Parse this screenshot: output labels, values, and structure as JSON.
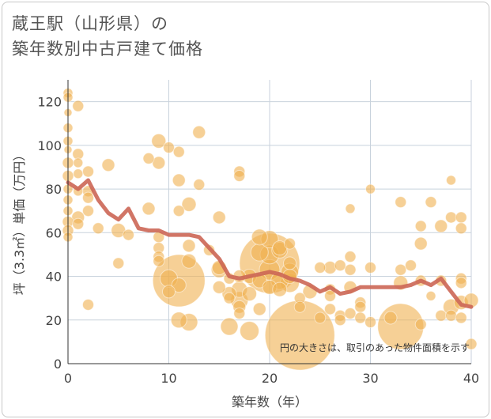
{
  "title_line1": "蔵王駅（山形県）の",
  "title_line2": "築年数別中古戸建て価格",
  "chart_data": {
    "type": "scatter",
    "title": "蔵王駅（山形県）の 築年数別中古戸建て価格",
    "xlabel": "築年数（年）",
    "ylabel": "坪（3.3㎡）単価（万円）",
    "xlim": [
      0,
      40
    ],
    "ylim": [
      0,
      130
    ],
    "xticks": [
      0,
      10,
      20,
      30,
      40
    ],
    "yticks": [
      0,
      20,
      40,
      60,
      80,
      100,
      120
    ],
    "note": "円の大きさは、取引のあった物件面積を示す",
    "colors": {
      "bubble": "#f0b050",
      "line": "#cc6655",
      "grid": "#c8d2dc"
    },
    "series": [
      {
        "name": "average",
        "type": "line",
        "x": [
          0,
          1,
          2,
          3,
          4,
          5,
          6,
          7,
          8,
          9,
          10,
          11,
          12,
          13,
          14,
          15,
          16,
          17,
          18,
          19,
          20,
          21,
          22,
          23,
          24,
          25,
          26,
          27,
          28,
          29,
          30,
          31,
          32,
          33,
          34,
          35,
          36,
          37,
          38,
          39,
          40
        ],
        "y": [
          83,
          80,
          84,
          75,
          69,
          66,
          71,
          62,
          61,
          61,
          59,
          59,
          59,
          58,
          53,
          48,
          40,
          39,
          40,
          41,
          42,
          41,
          39,
          38,
          36,
          33,
          35,
          32,
          33,
          35,
          35,
          35,
          35,
          35,
          36,
          38,
          36,
          39,
          33,
          27,
          26
        ]
      },
      {
        "name": "transactions",
        "type": "scatter",
        "points": [
          {
            "x": 0,
            "y": 124,
            "s": 6
          },
          {
            "x": 0,
            "y": 122,
            "s": 6
          },
          {
            "x": 0,
            "y": 115,
            "s": 5
          },
          {
            "x": 0,
            "y": 108,
            "s": 6
          },
          {
            "x": 0,
            "y": 102,
            "s": 6
          },
          {
            "x": 0,
            "y": 98,
            "s": 5
          },
          {
            "x": 0,
            "y": 92,
            "s": 7
          },
          {
            "x": 0,
            "y": 86,
            "s": 7
          },
          {
            "x": 0,
            "y": 80,
            "s": 6
          },
          {
            "x": 0,
            "y": 75,
            "s": 6
          },
          {
            "x": 0,
            "y": 70,
            "s": 6
          },
          {
            "x": 0,
            "y": 65,
            "s": 7
          },
          {
            "x": 0,
            "y": 61,
            "s": 7
          },
          {
            "x": 0,
            "y": 58,
            "s": 6
          },
          {
            "x": 1,
            "y": 118,
            "s": 7
          },
          {
            "x": 1,
            "y": 96,
            "s": 7
          },
          {
            "x": 1,
            "y": 92,
            "s": 6
          },
          {
            "x": 1,
            "y": 87,
            "s": 6
          },
          {
            "x": 1,
            "y": 79,
            "s": 6
          },
          {
            "x": 1,
            "y": 67,
            "s": 8
          },
          {
            "x": 1,
            "y": 64,
            "s": 7
          },
          {
            "x": 2,
            "y": 88,
            "s": 7
          },
          {
            "x": 2,
            "y": 79,
            "s": 7
          },
          {
            "x": 2,
            "y": 76,
            "s": 7
          },
          {
            "x": 2,
            "y": 70,
            "s": 7
          },
          {
            "x": 2,
            "y": 27,
            "s": 7
          },
          {
            "x": 3,
            "y": 62,
            "s": 7
          },
          {
            "x": 4,
            "y": 91,
            "s": 8
          },
          {
            "x": 5,
            "y": 61,
            "s": 9
          },
          {
            "x": 5,
            "y": 46,
            "s": 7
          },
          {
            "x": 6,
            "y": 59,
            "s": 7
          },
          {
            "x": 8,
            "y": 94,
            "s": 7
          },
          {
            "x": 8,
            "y": 71,
            "s": 8
          },
          {
            "x": 9,
            "y": 102,
            "s": 9
          },
          {
            "x": 9,
            "y": 92,
            "s": 8
          },
          {
            "x": 9,
            "y": 58,
            "s": 7
          },
          {
            "x": 9,
            "y": 53,
            "s": 7
          },
          {
            "x": 9,
            "y": 49,
            "s": 7
          },
          {
            "x": 9,
            "y": 47,
            "s": 7
          },
          {
            "x": 10,
            "y": 99,
            "s": 7
          },
          {
            "x": 10,
            "y": 39,
            "s": 11
          },
          {
            "x": 10,
            "y": 33,
            "s": 8
          },
          {
            "x": 11,
            "y": 97,
            "s": 7
          },
          {
            "x": 11,
            "y": 84,
            "s": 8
          },
          {
            "x": 11,
            "y": 70,
            "s": 7
          },
          {
            "x": 11,
            "y": 38,
            "s": 33
          },
          {
            "x": 11,
            "y": 36,
            "s": 9
          },
          {
            "x": 11,
            "y": 20,
            "s": 10
          },
          {
            "x": 12,
            "y": 73,
            "s": 9
          },
          {
            "x": 12,
            "y": 54,
            "s": 8
          },
          {
            "x": 12,
            "y": 47,
            "s": 9
          },
          {
            "x": 12,
            "y": 19,
            "s": 11
          },
          {
            "x": 13,
            "y": 106,
            "s": 8
          },
          {
            "x": 13,
            "y": 82,
            "s": 7
          },
          {
            "x": 14,
            "y": 52,
            "s": 7
          },
          {
            "x": 15,
            "y": 67,
            "s": 8
          },
          {
            "x": 15,
            "y": 44,
            "s": 9
          },
          {
            "x": 15,
            "y": 43,
            "s": 10
          },
          {
            "x": 15,
            "y": 35,
            "s": 8
          },
          {
            "x": 16,
            "y": 39,
            "s": 7
          },
          {
            "x": 16,
            "y": 32,
            "s": 9
          },
          {
            "x": 16,
            "y": 30,
            "s": 7
          },
          {
            "x": 16,
            "y": 17,
            "s": 11
          },
          {
            "x": 17,
            "y": 88,
            "s": 7
          },
          {
            "x": 17,
            "y": 86,
            "s": 7
          },
          {
            "x": 17,
            "y": 40,
            "s": 8
          },
          {
            "x": 17,
            "y": 34,
            "s": 10
          },
          {
            "x": 17,
            "y": 29,
            "s": 11
          },
          {
            "x": 17,
            "y": 26,
            "s": 8
          },
          {
            "x": 17,
            "y": 23,
            "s": 7
          },
          {
            "x": 18,
            "y": 40,
            "s": 9
          },
          {
            "x": 18,
            "y": 32,
            "s": 9
          },
          {
            "x": 18,
            "y": 15,
            "s": 12
          },
          {
            "x": 19,
            "y": 58,
            "s": 10
          },
          {
            "x": 19,
            "y": 51,
            "s": 11
          },
          {
            "x": 19,
            "y": 38,
            "s": 9
          },
          {
            "x": 19,
            "y": 25,
            "s": 8
          },
          {
            "x": 20,
            "y": 57,
            "s": 11
          },
          {
            "x": 20,
            "y": 50,
            "s": 12
          },
          {
            "x": 20,
            "y": 46,
            "s": 38
          },
          {
            "x": 20,
            "y": 43,
            "s": 13
          },
          {
            "x": 20,
            "y": 35,
            "s": 9
          },
          {
            "x": 21,
            "y": 53,
            "s": 9
          },
          {
            "x": 21,
            "y": 52,
            "s": 10
          },
          {
            "x": 21,
            "y": 38,
            "s": 11
          },
          {
            "x": 21,
            "y": 34,
            "s": 9
          },
          {
            "x": 22,
            "y": 55,
            "s": 7
          },
          {
            "x": 22,
            "y": 46,
            "s": 8
          },
          {
            "x": 22,
            "y": 42,
            "s": 11
          },
          {
            "x": 22,
            "y": 40,
            "s": 9
          },
          {
            "x": 22,
            "y": 37,
            "s": 12
          },
          {
            "x": 23,
            "y": 30,
            "s": 7
          },
          {
            "x": 23,
            "y": 26,
            "s": 7
          },
          {
            "x": 23,
            "y": 13,
            "s": 44
          },
          {
            "x": 24,
            "y": 33,
            "s": 9
          },
          {
            "x": 25,
            "y": 44,
            "s": 7
          },
          {
            "x": 25,
            "y": 21,
            "s": 7
          },
          {
            "x": 26,
            "y": 44,
            "s": 8
          },
          {
            "x": 26,
            "y": 34,
            "s": 7
          },
          {
            "x": 26,
            "y": 31,
            "s": 7
          },
          {
            "x": 26,
            "y": 25,
            "s": 7
          },
          {
            "x": 27,
            "y": 45,
            "s": 7
          },
          {
            "x": 27,
            "y": 22,
            "s": 7
          },
          {
            "x": 27,
            "y": 20,
            "s": 7
          },
          {
            "x": 28,
            "y": 71,
            "s": 6
          },
          {
            "x": 28,
            "y": 49,
            "s": 7
          },
          {
            "x": 28,
            "y": 43,
            "s": 7
          },
          {
            "x": 28,
            "y": 35,
            "s": 8
          },
          {
            "x": 28,
            "y": 23,
            "s": 7
          },
          {
            "x": 29,
            "y": 28,
            "s": 7
          },
          {
            "x": 29,
            "y": 26,
            "s": 7
          },
          {
            "x": 29,
            "y": 21,
            "s": 7
          },
          {
            "x": 30,
            "y": 80,
            "s": 6
          },
          {
            "x": 30,
            "y": 44,
            "s": 7
          },
          {
            "x": 30,
            "y": 19,
            "s": 7
          },
          {
            "x": 33,
            "y": 74,
            "s": 7
          },
          {
            "x": 33,
            "y": 43,
            "s": 7
          },
          {
            "x": 33,
            "y": 37,
            "s": 9
          },
          {
            "x": 33,
            "y": 17,
            "s": 29
          },
          {
            "x": 32,
            "y": 21,
            "s": 8
          },
          {
            "x": 34,
            "y": 45,
            "s": 7
          },
          {
            "x": 35,
            "y": 63,
            "s": 7
          },
          {
            "x": 35,
            "y": 55,
            "s": 8
          },
          {
            "x": 35,
            "y": 38,
            "s": 7
          },
          {
            "x": 35,
            "y": 18,
            "s": 7
          },
          {
            "x": 36,
            "y": 74,
            "s": 7
          },
          {
            "x": 36,
            "y": 31,
            "s": 6
          },
          {
            "x": 37,
            "y": 63,
            "s": 8
          },
          {
            "x": 37,
            "y": 38,
            "s": 7
          },
          {
            "x": 37,
            "y": 22,
            "s": 7
          },
          {
            "x": 38,
            "y": 84,
            "s": 6
          },
          {
            "x": 38,
            "y": 67,
            "s": 7
          },
          {
            "x": 38,
            "y": 26,
            "s": 10
          },
          {
            "x": 38,
            "y": 22,
            "s": 7
          },
          {
            "x": 39,
            "y": 67,
            "s": 7
          },
          {
            "x": 39,
            "y": 62,
            "s": 7
          },
          {
            "x": 39,
            "y": 39,
            "s": 7
          },
          {
            "x": 39,
            "y": 37,
            "s": 7
          },
          {
            "x": 39,
            "y": 28,
            "s": 9
          },
          {
            "x": 39,
            "y": 21,
            "s": 7
          },
          {
            "x": 40,
            "y": 29,
            "s": 9
          },
          {
            "x": 40,
            "y": 9,
            "s": 7
          }
        ]
      }
    ]
  }
}
